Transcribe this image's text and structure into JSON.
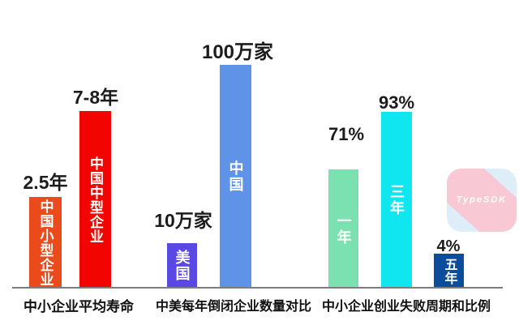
{
  "colors": {
    "background": "#ffffff",
    "axis": "#7d7d7d",
    "value_text": "#1c1c1c",
    "group_text": "#111111"
  },
  "chart_data": [
    {
      "type": "bar",
      "title": "中小企业平均寿命",
      "categories": [
        "中国小型企业",
        "中国中型企业"
      ],
      "values": [
        "2.5年",
        "7-8年"
      ],
      "values_numeric_years": [
        2.5,
        7.5
      ],
      "colors": [
        "#eb4b1b",
        "#f20500"
      ],
      "grid": false,
      "value_label_position": "above-bar",
      "category_label_position": "inside-bar-vertical"
    },
    {
      "type": "bar",
      "title": "中美每年倒闭企业数量对比",
      "categories": [
        "美国",
        "中国"
      ],
      "values": [
        "10万家",
        "100万家"
      ],
      "values_numeric_wan": [
        10,
        100
      ],
      "colors": [
        "#5a48e4",
        "#5f93e8"
      ],
      "grid": false,
      "value_label_position": "above-bar",
      "category_label_position": "inside-bar-vertical"
    },
    {
      "type": "bar",
      "title": "中小企业创业失败周期和比例",
      "categories": [
        "一年",
        "三年",
        "五年"
      ],
      "values": [
        "71%",
        "93%",
        "4%"
      ],
      "values_numeric_pct": [
        71,
        93,
        4
      ],
      "colors": [
        "#7be1b1",
        "#0fe6f0",
        "#0b4c9b"
      ],
      "grid": false,
      "value_label_position": "above-bar",
      "category_label_position": "inside-bar-vertical"
    }
  ],
  "watermark": {
    "text": "TypeSDK",
    "band_color": "#f8c6d2",
    "corner_color": "#dceef8",
    "text_color": "#ffffff"
  }
}
